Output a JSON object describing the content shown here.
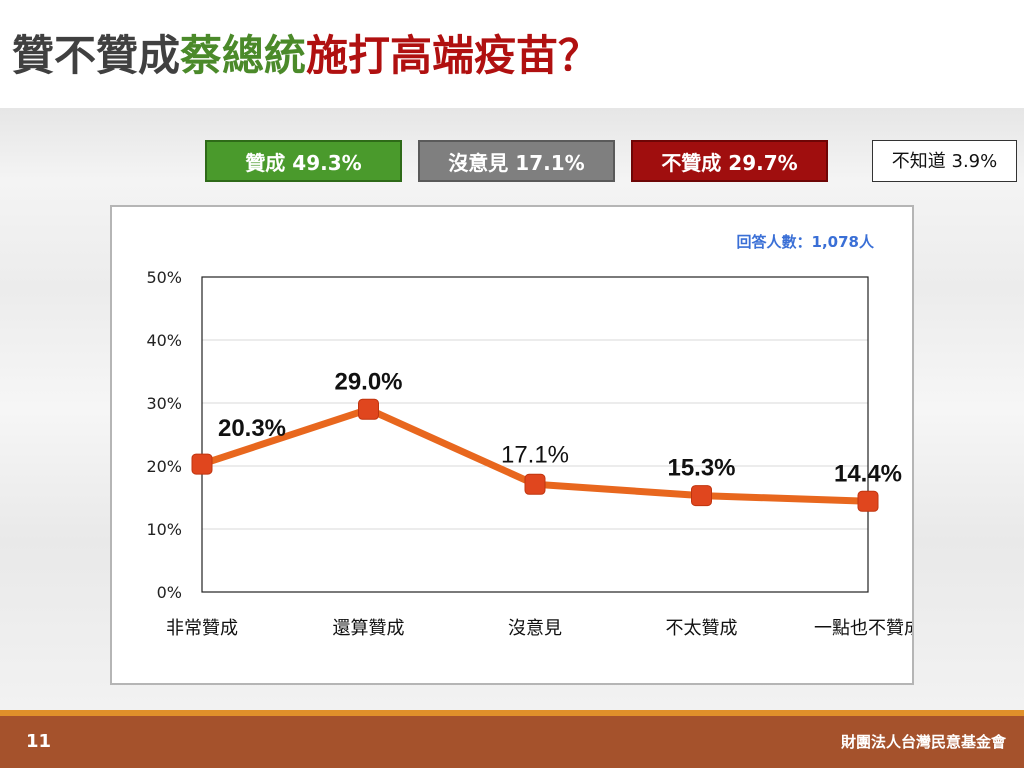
{
  "title": {
    "part1": "贊不贊成",
    "part2": "蔡總統",
    "part3": "施打高端疫苗？"
  },
  "summary": {
    "agree": "贊成 49.3%",
    "neutral": "沒意見 17.1%",
    "disagree": "不贊成 29.7%",
    "unknown": "不知道 3.9%"
  },
  "respondents": "回答人數：1,078人",
  "footer": {
    "page_number": "11",
    "organization": "財團法人台灣民意基金會"
  },
  "colors": {
    "line": "#e8671e",
    "marker": "#e0461e",
    "agree": "#4a9a2c",
    "neutral": "#7f7f7f",
    "disagree": "#a00e0e"
  },
  "chart_data": {
    "type": "line",
    "title": "",
    "xlabel": "",
    "ylabel": "",
    "categories": [
      "非常贊成",
      "還算贊成",
      "沒意見",
      "不太贊成",
      "一點也不贊成"
    ],
    "series": [
      {
        "values": [
          20.3,
          29.0,
          17.1,
          15.3,
          14.4
        ],
        "labels": [
          "20.3%",
          "29.0%",
          "17.1%",
          "15.3%",
          "14.4%"
        ]
      }
    ],
    "ylim": [
      0,
      50
    ],
    "yticks": [
      0,
      10,
      20,
      30,
      40,
      50
    ],
    "ytick_labels": [
      "0%",
      "10%",
      "20%",
      "30%",
      "40%",
      "50%"
    ],
    "grid": true,
    "legend": "none"
  }
}
